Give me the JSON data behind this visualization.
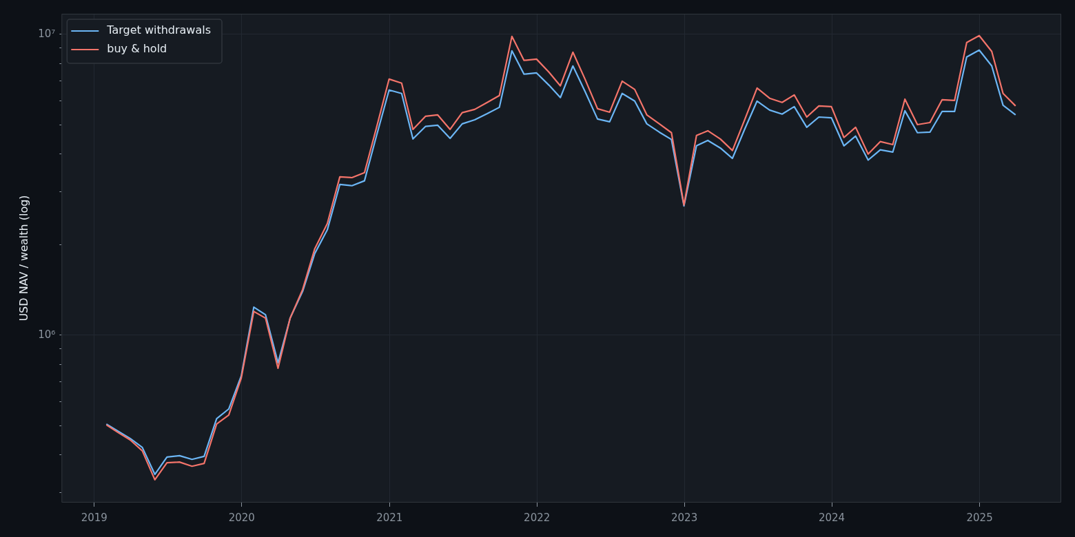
{
  "chart_data": {
    "type": "line",
    "ylabel": "USD NAV / wealth (log)",
    "log": true,
    "grid": true,
    "legend": "top left",
    "marker": "none",
    "line_style": "solid",
    "xlim": [
      "2018-10-12",
      "2025-07-22"
    ],
    "xticks": [
      "2019",
      "2020",
      "2021",
      "2022",
      "2023",
      "2024",
      "2025"
    ],
    "ylim": [
      278000,
      11700000
    ],
    "yticks": [
      {
        "value": 300000,
        "label": null
      },
      {
        "value": 400000,
        "label": null
      },
      {
        "value": 500000,
        "label": null
      },
      {
        "value": 600000,
        "label": null
      },
      {
        "value": 700000,
        "label": null
      },
      {
        "value": 800000,
        "label": null
      },
      {
        "value": 900000,
        "label": null
      },
      {
        "value": 1000000,
        "label": "10⁶"
      },
      {
        "value": 2000000,
        "label": null
      },
      {
        "value": 3000000,
        "label": null
      },
      {
        "value": 4000000,
        "label": null
      },
      {
        "value": 5000000,
        "label": null
      },
      {
        "value": 6000000,
        "label": null
      },
      {
        "value": 7000000,
        "label": null
      },
      {
        "value": 8000000,
        "label": null
      },
      {
        "value": 9000000,
        "label": null
      },
      {
        "value": 10000000,
        "label": "10⁷"
      }
    ],
    "x": [
      "2019-01-31",
      "2019-02-28",
      "2019-03-31",
      "2019-04-30",
      "2019-05-31",
      "2019-06-30",
      "2019-07-31",
      "2019-08-31",
      "2019-09-30",
      "2019-10-31",
      "2019-11-30",
      "2019-12-31",
      "2020-01-31",
      "2020-02-29",
      "2020-03-31",
      "2020-04-30",
      "2020-05-31",
      "2020-06-30",
      "2020-07-31",
      "2020-08-31",
      "2020-09-30",
      "2020-10-31",
      "2020-11-30",
      "2020-12-31",
      "2021-01-31",
      "2021-02-28",
      "2021-03-31",
      "2021-04-30",
      "2021-05-31",
      "2021-06-30",
      "2021-07-31",
      "2021-08-31",
      "2021-09-30",
      "2021-10-31",
      "2021-11-30",
      "2021-12-31",
      "2022-01-31",
      "2022-02-28",
      "2022-03-31",
      "2022-04-30",
      "2022-05-31",
      "2022-06-30",
      "2022-07-31",
      "2022-08-31",
      "2022-09-30",
      "2022-10-31",
      "2022-11-30",
      "2022-12-31",
      "2023-01-31",
      "2023-02-28",
      "2023-03-31",
      "2023-04-30",
      "2023-05-31",
      "2023-06-30",
      "2023-07-31",
      "2023-08-31",
      "2023-09-30",
      "2023-10-31",
      "2023-11-30",
      "2023-12-31",
      "2024-01-31",
      "2024-02-29",
      "2024-03-31",
      "2024-04-30",
      "2024-05-31",
      "2024-06-30",
      "2024-07-31",
      "2024-08-31",
      "2024-09-30",
      "2024-10-31",
      "2024-11-30",
      "2024-12-31",
      "2025-01-31",
      "2025-02-28",
      "2025-03-31"
    ],
    "series": [
      {
        "name": "Target withdrawals",
        "color": "#6cb6f5",
        "values": [
          507000,
          481000,
          454000,
          424000,
          345000,
          394000,
          398000,
          387000,
          396000,
          528000,
          569000,
          733000,
          1240000,
          1170000,
          810000,
          1140000,
          1400000,
          1870000,
          2240000,
          3170000,
          3140000,
          3260000,
          4610000,
          6530000,
          6360000,
          4490000,
          4940000,
          4990000,
          4510000,
          5040000,
          5200000,
          5450000,
          5720000,
          8810000,
          7370000,
          7440000,
          6770000,
          6160000,
          7850000,
          6460000,
          5230000,
          5120000,
          6360000,
          6000000,
          5040000,
          4730000,
          4470000,
          2690000,
          4260000,
          4440000,
          4190000,
          3870000,
          4860000,
          6000000,
          5600000,
          5430000,
          5750000,
          4910000,
          5310000,
          5280000,
          4260000,
          4590000,
          3820000,
          4130000,
          4060000,
          5570000,
          4710000,
          4730000,
          5540000,
          5540000,
          8410000,
          8860000,
          7850000,
          5810000,
          5400000
        ]
      },
      {
        "name": "buy & hold",
        "color": "#f4746a",
        "values": [
          504000,
          476000,
          449000,
          413000,
          331000,
          377000,
          379000,
          367000,
          375000,
          507000,
          543000,
          721000,
          1200000,
          1140000,
          777000,
          1140000,
          1420000,
          1940000,
          2350000,
          3360000,
          3340000,
          3470000,
          4910000,
          7100000,
          6880000,
          4830000,
          5340000,
          5400000,
          4830000,
          5490000,
          5630000,
          5940000,
          6260000,
          9840000,
          8190000,
          8270000,
          7480000,
          6740000,
          8720000,
          7100000,
          5660000,
          5510000,
          6990000,
          6560000,
          5400000,
          5040000,
          4710000,
          2710000,
          4610000,
          4780000,
          4490000,
          4110000,
          5230000,
          6630000,
          6130000,
          5940000,
          6290000,
          5310000,
          5780000,
          5750000,
          4540000,
          4910000,
          4000000,
          4400000,
          4300000,
          6090000,
          5010000,
          5090000,
          6060000,
          6030000,
          9390000,
          9900000,
          8770000,
          6360000,
          5780000
        ]
      }
    ]
  }
}
